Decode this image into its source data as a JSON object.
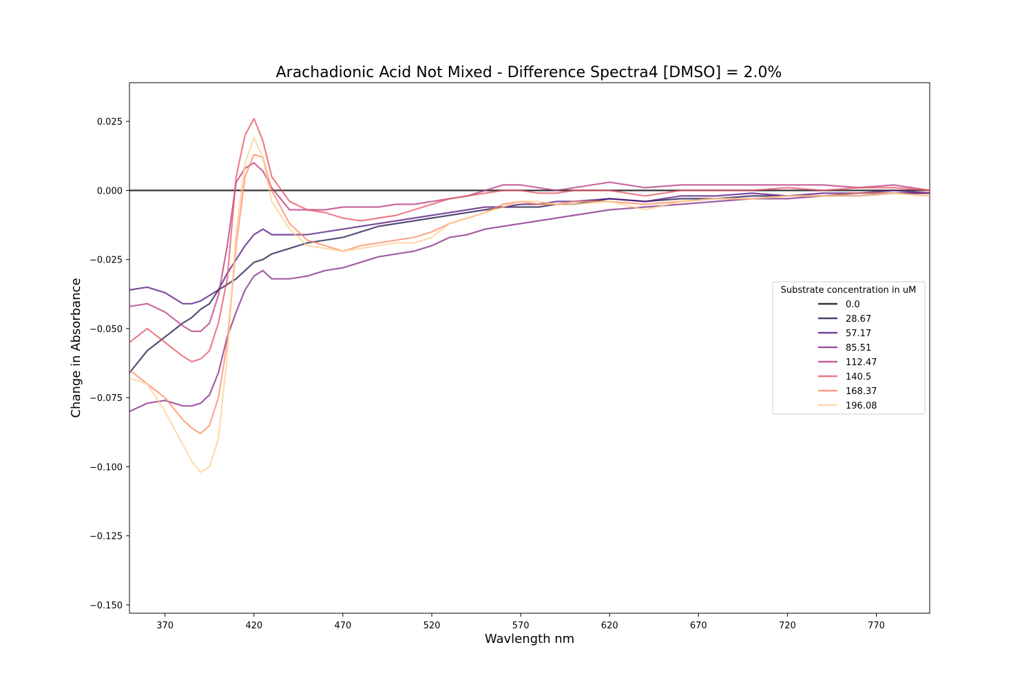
{
  "chart_data": {
    "type": "line",
    "title": "Arachadionic Acid Not Mixed - Difference Spectra4 [DMSO] = 2.0%",
    "xlabel": "Wavlength nm",
    "ylabel": "Change in Absorbance",
    "xlim": [
      350,
      800
    ],
    "ylim": [
      -0.153,
      0.039
    ],
    "xticks": [
      370,
      420,
      470,
      520,
      570,
      620,
      670,
      720,
      770
    ],
    "yticks": [
      0.025,
      0.0,
      -0.025,
      -0.05,
      -0.075,
      -0.1,
      -0.125,
      -0.15
    ],
    "ytick_labels": [
      "0.025",
      "0.000",
      "−0.025",
      "−0.050",
      "−0.075",
      "−0.100",
      "−0.125",
      "−0.150"
    ],
    "grid": false,
    "legend": {
      "title": "Substrate concentration in uM",
      "placement": "center-right"
    },
    "x": [
      350,
      360,
      370,
      380,
      385,
      390,
      395,
      400,
      405,
      410,
      415,
      420,
      425,
      430,
      440,
      450,
      460,
      470,
      480,
      490,
      500,
      510,
      520,
      530,
      540,
      550,
      560,
      570,
      580,
      590,
      600,
      620,
      640,
      660,
      680,
      700,
      720,
      740,
      760,
      780,
      800
    ],
    "series": [
      {
        "name": "0.0",
        "color": "#000004",
        "values": [
          0.0,
          0.0,
          0.0,
          0.0,
          0.0,
          0.0,
          0.0,
          0.0,
          0.0,
          0.0,
          0.0,
          0.0,
          0.0,
          0.0,
          0.0,
          0.0,
          0.0,
          0.0,
          0.0,
          0.0,
          0.0,
          0.0,
          0.0,
          0.0,
          0.0,
          0.0,
          0.0,
          0.0,
          0.0,
          0.0,
          0.0,
          0.0,
          0.0,
          0.0,
          0.0,
          0.0,
          0.0,
          0.0,
          0.0,
          0.0,
          0.0
        ]
      },
      {
        "name": "28.67",
        "color": "#1d1147",
        "values": [
          -0.066,
          -0.058,
          -0.053,
          -0.048,
          -0.046,
          -0.043,
          -0.041,
          -0.036,
          -0.034,
          -0.032,
          -0.029,
          -0.026,
          -0.025,
          -0.023,
          -0.021,
          -0.019,
          -0.018,
          -0.017,
          -0.015,
          -0.013,
          -0.012,
          -0.011,
          -0.01,
          -0.009,
          -0.008,
          -0.007,
          -0.006,
          -0.006,
          -0.006,
          -0.005,
          -0.005,
          -0.003,
          -0.004,
          -0.003,
          -0.003,
          -0.002,
          -0.002,
          -0.002,
          -0.001,
          -0.001,
          -0.001
        ]
      },
      {
        "name": "57.17",
        "color": "#51127c",
        "values": [
          -0.036,
          -0.035,
          -0.037,
          -0.041,
          -0.041,
          -0.04,
          -0.038,
          -0.036,
          -0.03,
          -0.025,
          -0.02,
          -0.016,
          -0.014,
          -0.016,
          -0.016,
          -0.016,
          -0.015,
          -0.014,
          -0.013,
          -0.012,
          -0.011,
          -0.01,
          -0.009,
          -0.008,
          -0.007,
          -0.006,
          -0.006,
          -0.005,
          -0.005,
          -0.004,
          -0.004,
          -0.003,
          -0.004,
          -0.002,
          -0.002,
          -0.001,
          -0.002,
          -0.001,
          -0.001,
          0.0,
          -0.001
        ]
      },
      {
        "name": "85.51",
        "color": "#822681",
        "values": [
          -0.08,
          -0.077,
          -0.076,
          -0.078,
          -0.078,
          -0.077,
          -0.074,
          -0.066,
          -0.053,
          -0.044,
          -0.036,
          -0.031,
          -0.029,
          -0.032,
          -0.032,
          -0.031,
          -0.029,
          -0.028,
          -0.026,
          -0.024,
          -0.023,
          -0.022,
          -0.02,
          -0.017,
          -0.016,
          -0.014,
          -0.013,
          -0.012,
          -0.011,
          -0.01,
          -0.009,
          -0.007,
          -0.006,
          -0.005,
          -0.004,
          -0.003,
          -0.003,
          -0.002,
          -0.002,
          -0.001,
          -0.001
        ]
      },
      {
        "name": "112.47",
        "color": "#b73779",
        "values": [
          -0.042,
          -0.041,
          -0.044,
          -0.049,
          -0.051,
          -0.051,
          -0.048,
          -0.038,
          -0.02,
          0.003,
          0.008,
          0.01,
          0.007,
          0.001,
          -0.007,
          -0.007,
          -0.007,
          -0.006,
          -0.006,
          -0.006,
          -0.005,
          -0.005,
          -0.004,
          -0.003,
          -0.002,
          0.0,
          0.002,
          0.002,
          0.001,
          0.0,
          0.001,
          0.003,
          0.001,
          0.002,
          0.002,
          0.002,
          0.002,
          0.002,
          0.001,
          0.002,
          0.0
        ]
      },
      {
        "name": "140.5",
        "color": "#e75263",
        "values": [
          -0.055,
          -0.05,
          -0.055,
          -0.06,
          -0.062,
          -0.061,
          -0.058,
          -0.048,
          -0.032,
          0.005,
          0.02,
          0.026,
          0.018,
          0.005,
          -0.004,
          -0.007,
          -0.008,
          -0.01,
          -0.011,
          -0.01,
          -0.009,
          -0.007,
          -0.005,
          -0.003,
          -0.002,
          -0.001,
          0.0,
          0.0,
          -0.001,
          -0.001,
          0.0,
          0.0,
          -0.002,
          0.0,
          0.0,
          0.0,
          0.001,
          0.0,
          0.001,
          0.001,
          0.0
        ]
      },
      {
        "name": "168.37",
        "color": "#fc8961",
        "values": [
          -0.065,
          -0.07,
          -0.075,
          -0.083,
          -0.086,
          -0.088,
          -0.085,
          -0.075,
          -0.055,
          -0.02,
          0.005,
          0.013,
          0.012,
          0.0,
          -0.012,
          -0.018,
          -0.02,
          -0.022,
          -0.02,
          -0.019,
          -0.018,
          -0.017,
          -0.015,
          -0.012,
          -0.01,
          -0.008,
          -0.005,
          -0.004,
          -0.005,
          -0.005,
          -0.004,
          -0.004,
          -0.005,
          -0.004,
          -0.003,
          -0.003,
          -0.002,
          -0.002,
          -0.001,
          -0.001,
          -0.002
        ]
      },
      {
        "name": "196.08",
        "color": "#fecf92",
        "values": [
          -0.068,
          -0.07,
          -0.08,
          -0.092,
          -0.098,
          -0.102,
          -0.1,
          -0.09,
          -0.06,
          -0.015,
          0.01,
          0.019,
          0.012,
          -0.004,
          -0.014,
          -0.02,
          -0.021,
          -0.022,
          -0.021,
          -0.02,
          -0.019,
          -0.019,
          -0.017,
          -0.012,
          -0.01,
          -0.008,
          -0.006,
          -0.004,
          -0.004,
          -0.005,
          -0.005,
          -0.004,
          -0.007,
          -0.004,
          -0.003,
          -0.003,
          -0.002,
          -0.002,
          -0.002,
          -0.001,
          -0.002
        ]
      }
    ]
  }
}
